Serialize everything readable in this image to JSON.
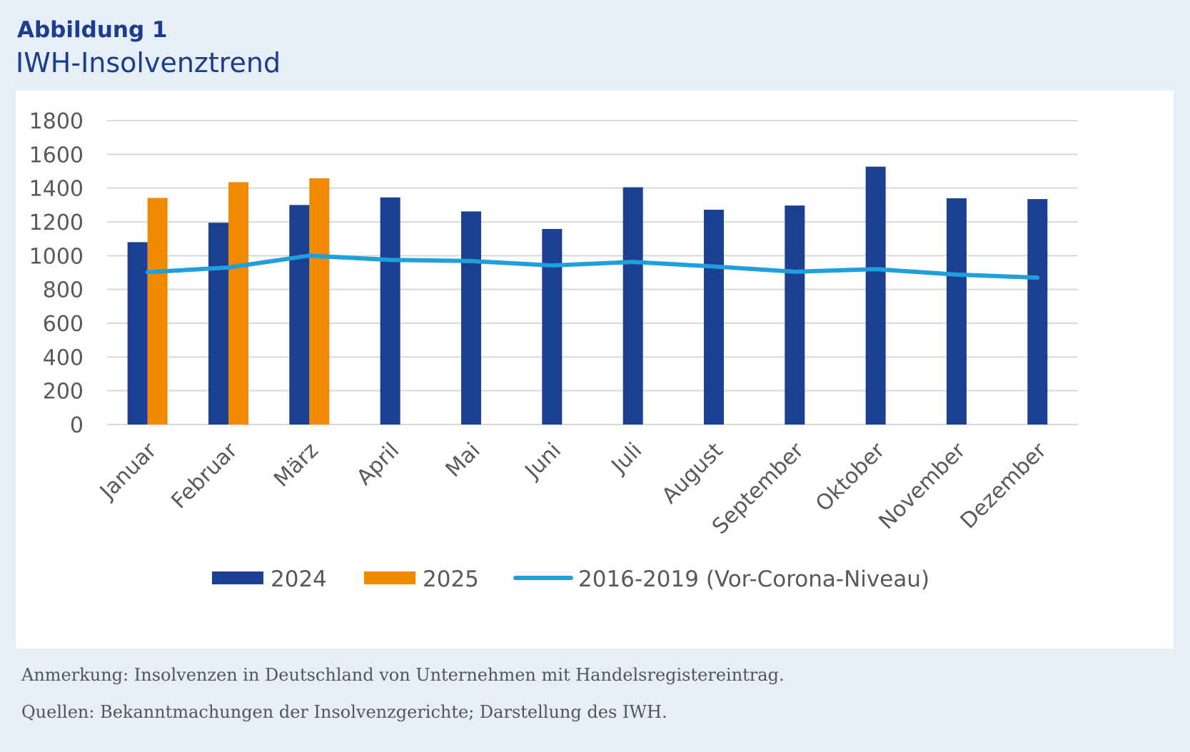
{
  "figure": {
    "label": "Abbildung 1",
    "title": "IWH-Insolvenztrend"
  },
  "notes": {
    "annotation": "Anmerkung: Insolvenzen in Deutschland von Unternehmen mit Handelsregistereintrag.",
    "sources": "Quellen: Bekanntmachungen der Insolvenzgerichte; Darstellung des IWH."
  },
  "colors": {
    "series_2024": "#1b3f91",
    "series_2025": "#f18a00",
    "series_baseline": "#209fdc",
    "gridline": "#d9d9d9",
    "tick_text": "#595959"
  },
  "chart_data": {
    "type": "bar",
    "title": "IWH-Insolvenztrend",
    "xlabel": "",
    "ylabel": "",
    "ylim": [
      0,
      1800
    ],
    "yticks": [
      0,
      200,
      400,
      600,
      800,
      1000,
      1200,
      1400,
      1600,
      1800
    ],
    "grid": true,
    "legend_position": "bottom",
    "categories": [
      "Januar",
      "Februar",
      "März",
      "April",
      "Mai",
      "Juni",
      "Juli",
      "August",
      "September",
      "Oktober",
      "November",
      "Dezember"
    ],
    "series": [
      {
        "name": "2024",
        "type": "bar",
        "color": "#1b3f91",
        "values": [
          1080,
          1195,
          1300,
          1345,
          1262,
          1158,
          1405,
          1272,
          1297,
          1527,
          1340,
          1335
        ]
      },
      {
        "name": "2025",
        "type": "bar",
        "color": "#f18a00",
        "values": [
          1342,
          1435,
          1458,
          null,
          null,
          null,
          null,
          null,
          null,
          null,
          null,
          null
        ]
      },
      {
        "name": "2016-2019 (Vor-Corona-Niveau)",
        "type": "line",
        "color": "#209fdc",
        "values": [
          902,
          930,
          1000,
          975,
          968,
          942,
          963,
          936,
          905,
          920,
          888,
          870
        ]
      }
    ]
  }
}
